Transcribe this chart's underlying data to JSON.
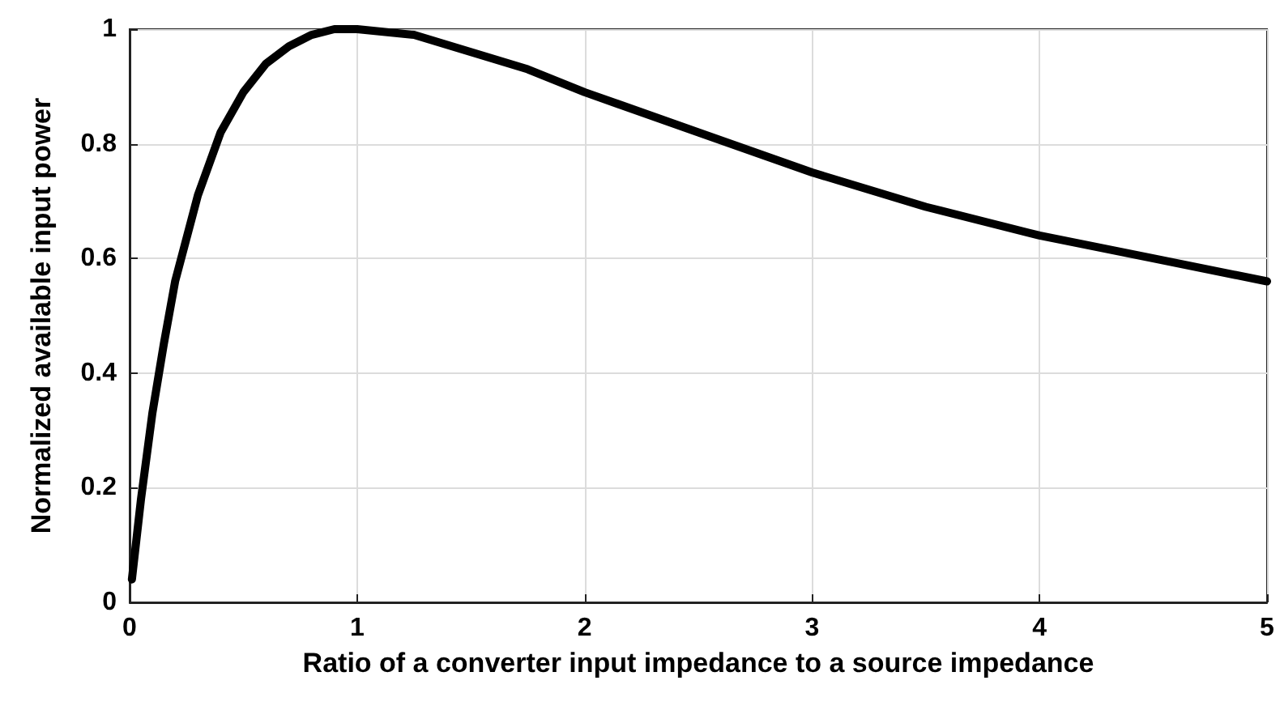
{
  "chart_data": {
    "type": "line",
    "xlabel": "Ratio of a converter input impedance to a source impedance",
    "ylabel": "Normalized available input power",
    "x": [
      0.01,
      0.05,
      0.1,
      0.15,
      0.2,
      0.3,
      0.4,
      0.5,
      0.6,
      0.7,
      0.8,
      0.9,
      1,
      1.25,
      1.5,
      1.75,
      2,
      2.5,
      3,
      3.5,
      4,
      4.5,
      5
    ],
    "series": [
      {
        "color": "#000000",
        "values": [
          0.04,
          0.18,
          0.33,
          0.45,
          0.56,
          0.71,
          0.82,
          0.89,
          0.94,
          0.97,
          0.99,
          1.0,
          1.0,
          0.99,
          0.96,
          0.93,
          0.89,
          0.82,
          0.75,
          0.69,
          0.64,
          0.6,
          0.56
        ]
      }
    ],
    "xlim": [
      0,
      5
    ],
    "xticks": [
      0,
      1,
      2,
      3,
      4,
      5
    ],
    "ylim": [
      0,
      1
    ],
    "yticks": [
      0,
      0.2,
      0.4,
      0.6,
      0.8,
      1
    ],
    "grid": true,
    "marker": "none",
    "line_style": "solid"
  }
}
